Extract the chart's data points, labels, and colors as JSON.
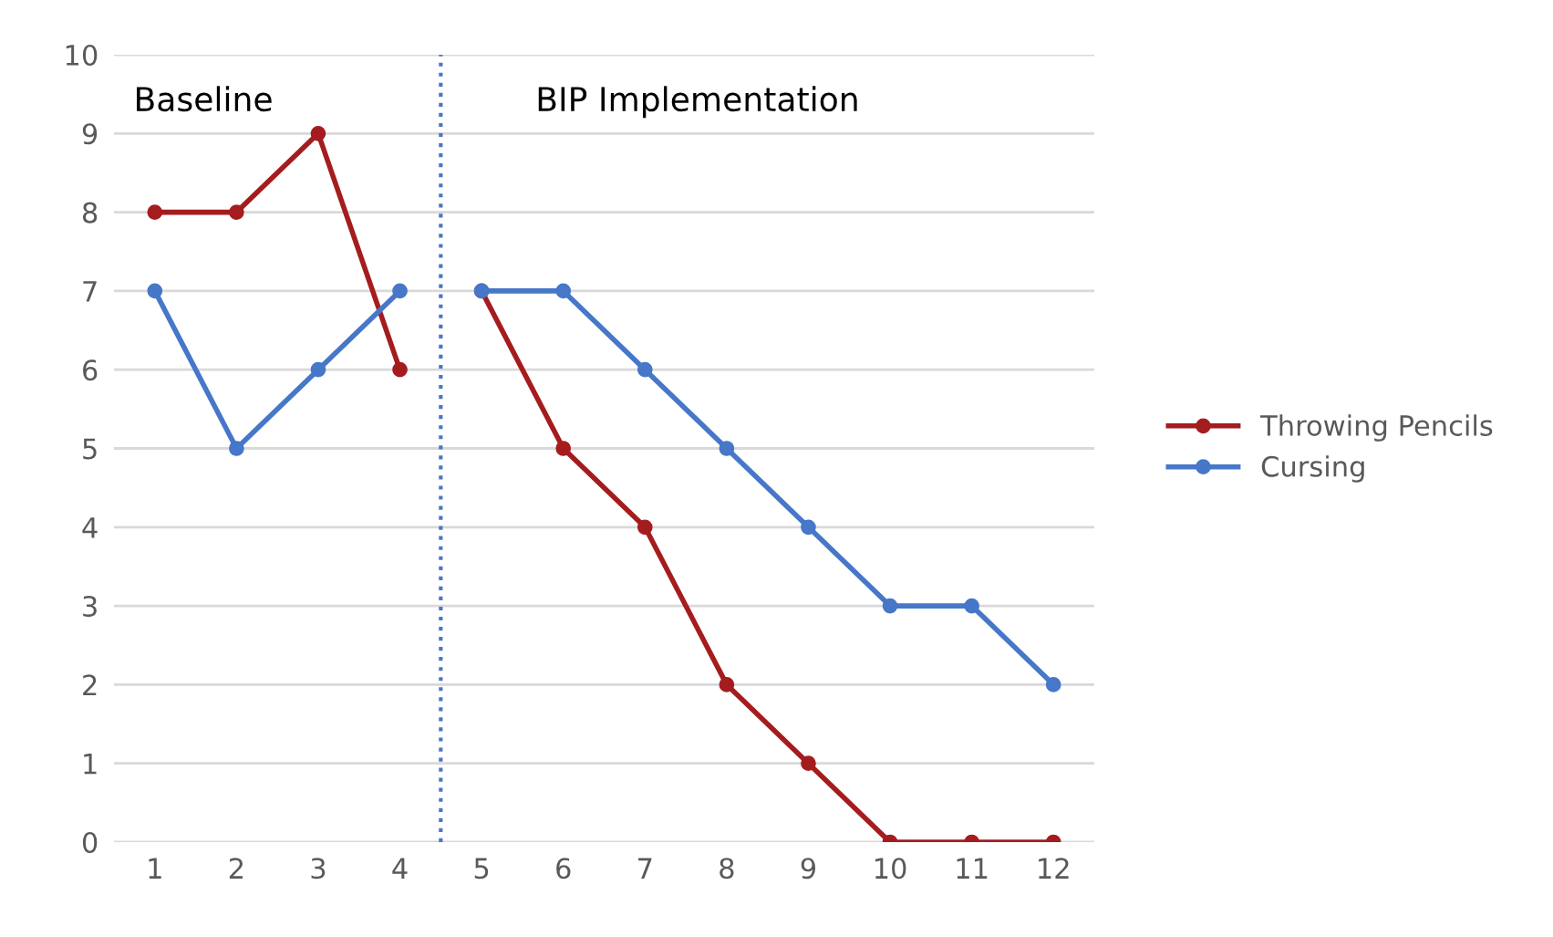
{
  "chart_data": {
    "type": "line",
    "x": [
      1,
      2,
      3,
      4,
      5,
      6,
      7,
      8,
      9,
      10,
      11,
      12
    ],
    "series": [
      {
        "name": "Throwing Pencils",
        "color": "#a51c1f",
        "values": [
          8,
          8,
          9,
          6,
          null,
          null,
          null,
          null,
          null,
          null,
          null,
          null
        ]
      },
      {
        "color": "#a51c1f",
        "values": [
          null,
          null,
          null,
          null,
          7,
          5,
          4,
          2,
          1,
          0,
          0,
          0
        ]
      },
      {
        "name": "Cursing",
        "color": "#4677c8",
        "values": [
          7,
          5,
          6,
          7,
          null,
          null,
          null,
          null,
          null,
          null,
          null,
          null
        ]
      },
      {
        "color": "#4677c8",
        "values": [
          null,
          null,
          null,
          null,
          7,
          7,
          6,
          5,
          4,
          3,
          3,
          2
        ]
      }
    ],
    "xlim": [
      0.5,
      12.5
    ],
    "xticks": [
      1,
      2,
      3,
      4,
      5,
      6,
      7,
      8,
      9,
      10,
      11,
      12
    ],
    "ylim": [
      0,
      10
    ],
    "yticks": [
      0,
      1,
      2,
      3,
      4,
      5,
      6,
      7,
      8,
      9,
      10
    ],
    "ref_lines": [
      {
        "axis": "x",
        "value": 4.5,
        "color": "#4677c8",
        "line_style": "dotted"
      }
    ],
    "annotations": [
      "Baseline",
      "BIP Implementation"
    ],
    "grid": "y",
    "legend": "right",
    "marker": "circle",
    "line_style": "solid"
  }
}
